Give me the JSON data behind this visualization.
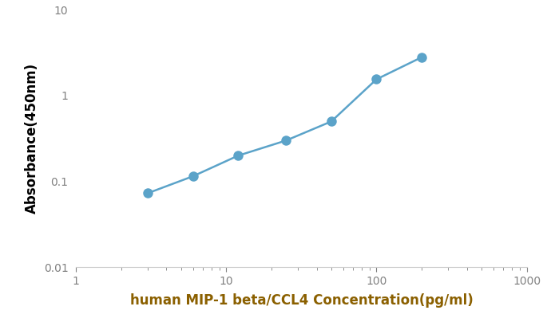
{
  "x_values": [
    3,
    6,
    12,
    25,
    50,
    100,
    200
  ],
  "y_values": [
    0.073,
    0.115,
    0.2,
    0.3,
    0.5,
    1.55,
    2.8
  ],
  "line_color": "#5BA3C9",
  "marker_color": "#5BA3C9",
  "marker_size": 9,
  "line_width": 1.8,
  "xlabel": "human MIP-1 beta/CCL4 Concentration(pg/ml)",
  "ylabel": "Absorbance(450nm)",
  "xlim": [
    1,
    1000
  ],
  "ylim": [
    0.01,
    10
  ],
  "background_color": "#ffffff",
  "xlabel_color": "#8B6000",
  "ylabel_color": "#000000",
  "tick_color": "#808080",
  "spine_color": "#cccccc",
  "xlabel_fontsize": 12,
  "ylabel_fontsize": 12,
  "tick_fontsize": 10,
  "figwidth": 6.8,
  "figheight": 4.09,
  "dpi": 100
}
